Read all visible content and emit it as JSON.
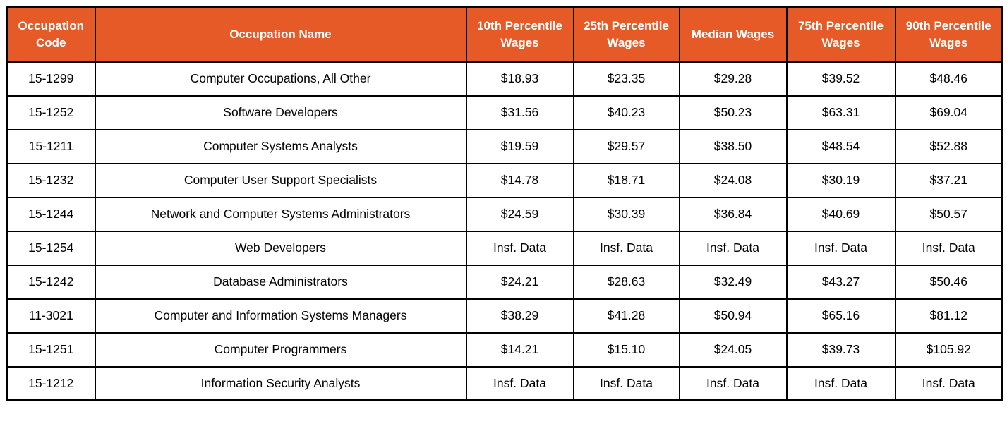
{
  "colors": {
    "header_bg": "#E65A28",
    "header_text": "#FFFFFF",
    "border": "#000000",
    "row_bg": "#FFFFFF",
    "body_text": "#000000"
  },
  "chart_data": {
    "type": "table",
    "columns": [
      "Occupation Code",
      "Occupation Name",
      "10th Percentile Wages",
      "25th Percentile Wages",
      "Median Wages",
      "75th Percentile Wages",
      "90th Percentile Wages"
    ],
    "rows": [
      [
        "15-1299",
        "Computer Occupations, All Other",
        "$18.93",
        "$23.35",
        "$29.28",
        "$39.52",
        "$48.46"
      ],
      [
        "15-1252",
        "Software Developers",
        "$31.56",
        "$40.23",
        "$50.23",
        "$63.31",
        "$69.04"
      ],
      [
        "15-1211",
        "Computer Systems Analysts",
        "$19.59",
        "$29.57",
        "$38.50",
        "$48.54",
        "$52.88"
      ],
      [
        "15-1232",
        "Computer User Support Specialists",
        "$14.78",
        "$18.71",
        "$24.08",
        "$30.19",
        "$37.21"
      ],
      [
        "15-1244",
        "Network and Computer Systems Administrators",
        "$24.59",
        "$30.39",
        "$36.84",
        "$40.69",
        "$50.57"
      ],
      [
        "15-1254",
        "Web Developers",
        "Insf. Data",
        "Insf. Data",
        "Insf. Data",
        "Insf. Data",
        "Insf. Data"
      ],
      [
        "15-1242",
        "Database Administrators",
        "$24.21",
        "$28.63",
        "$32.49",
        "$43.27",
        "$50.46"
      ],
      [
        "11-3021",
        "Computer and Information Systems Managers",
        "$38.29",
        "$41.28",
        "$50.94",
        "$65.16",
        "$81.12"
      ],
      [
        "15-1251",
        "Computer Programmers",
        "$14.21",
        "$15.10",
        "$24.05",
        "$39.73",
        "$105.92"
      ],
      [
        "15-1212",
        "Information Security Analysts",
        "Insf. Data",
        "Insf. Data",
        "Insf. Data",
        "Insf. Data",
        "Insf. Data"
      ]
    ],
    "insufficient_data_label": "Insf. Data"
  }
}
